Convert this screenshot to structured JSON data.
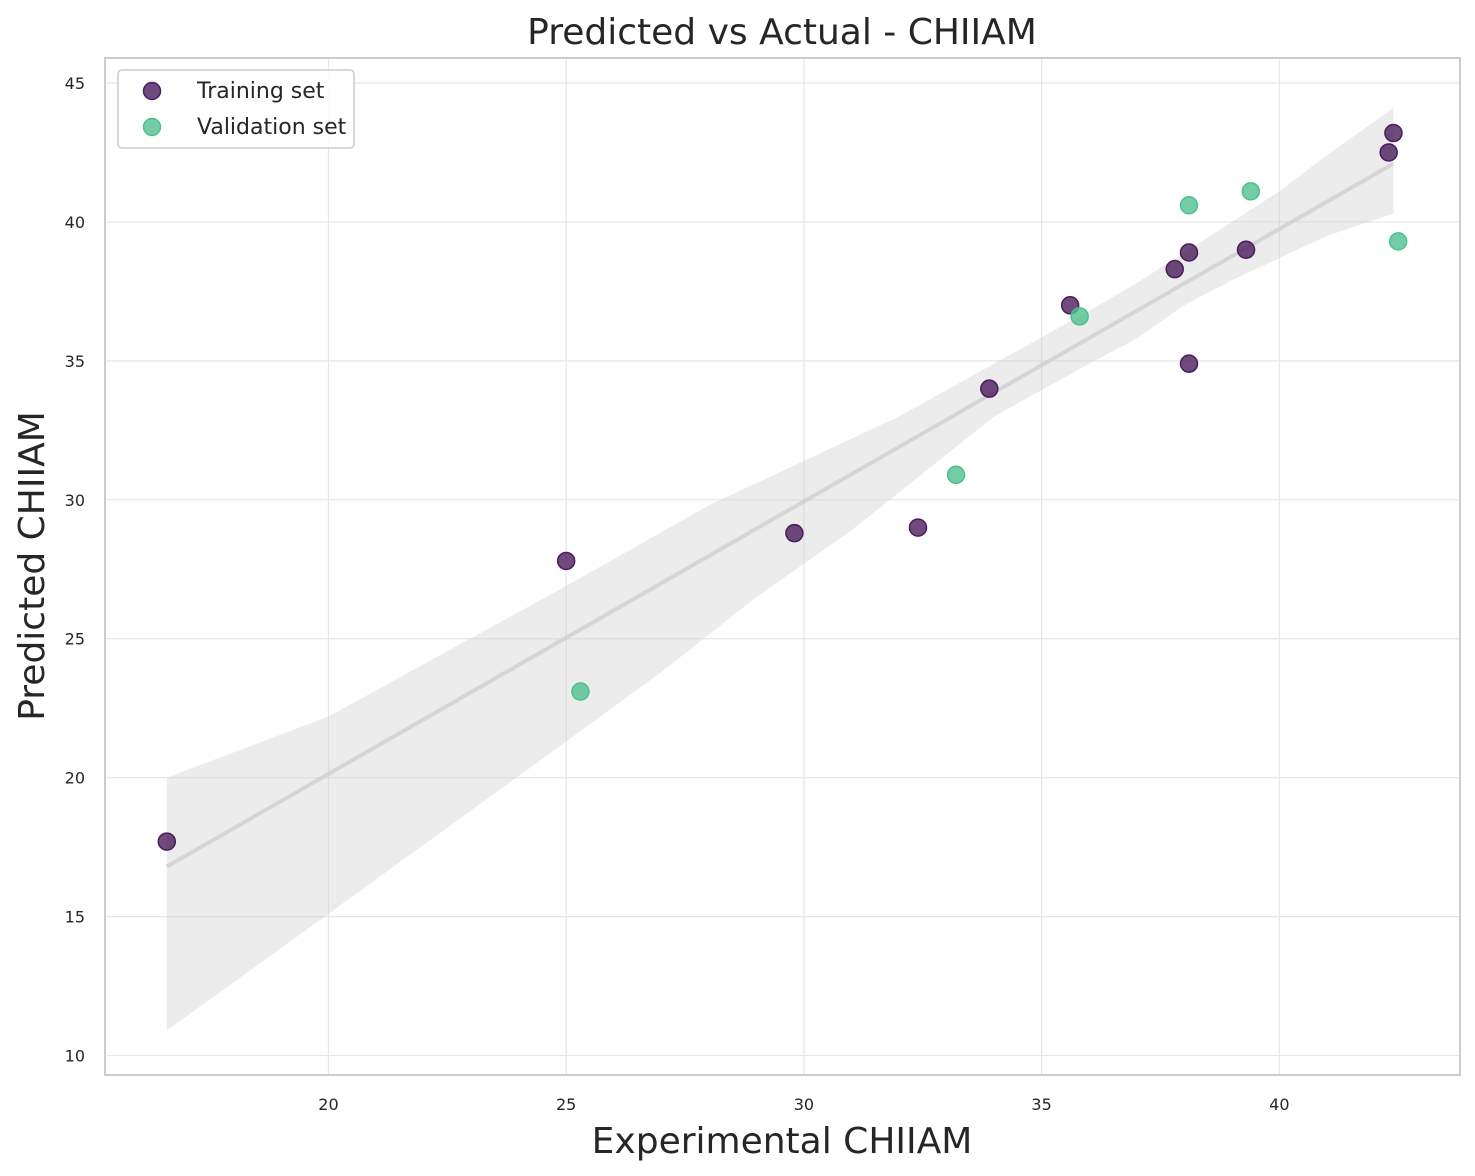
{
  "chart_data": {
    "type": "scatter",
    "title": "Predicted vs Actual - CHIIAM",
    "xlabel": "Experimental CHIIAM",
    "ylabel": "Predicted CHIIAM",
    "xlim": [
      15.3,
      43.8
    ],
    "ylim": [
      9.3,
      45.9
    ],
    "xticks": [
      20,
      25,
      30,
      35,
      40
    ],
    "yticks": [
      10,
      15,
      20,
      25,
      30,
      35,
      40,
      45
    ],
    "grid": true,
    "legend": "top-left",
    "series": [
      {
        "name": "Training set",
        "color": "#4b1d5c",
        "points": [
          {
            "x": 16.6,
            "y": 17.7
          },
          {
            "x": 25.0,
            "y": 27.8
          },
          {
            "x": 29.8,
            "y": 28.8
          },
          {
            "x": 32.4,
            "y": 29.0
          },
          {
            "x": 33.9,
            "y": 34.0
          },
          {
            "x": 35.6,
            "y": 37.0
          },
          {
            "x": 37.8,
            "y": 38.3
          },
          {
            "x": 38.1,
            "y": 34.9
          },
          {
            "x": 38.1,
            "y": 38.9
          },
          {
            "x": 39.3,
            "y": 39.0
          },
          {
            "x": 42.3,
            "y": 42.5
          },
          {
            "x": 42.4,
            "y": 43.2
          }
        ]
      },
      {
        "name": "Validation set",
        "color": "#4fc08d",
        "points": [
          {
            "x": 25.3,
            "y": 23.1
          },
          {
            "x": 33.2,
            "y": 30.9
          },
          {
            "x": 35.8,
            "y": 36.6
          },
          {
            "x": 38.1,
            "y": 40.6
          },
          {
            "x": 39.4,
            "y": 41.1
          },
          {
            "x": 42.5,
            "y": 39.3
          }
        ]
      }
    ],
    "regression": {
      "line": [
        [
          16.6,
          16.8
        ],
        [
          42.4,
          42.1
        ]
      ],
      "ci_upper": [
        [
          16.6,
          20.0
        ],
        [
          20.0,
          22.2
        ],
        [
          25.0,
          26.9
        ],
        [
          28.0,
          29.8
        ],
        [
          30.0,
          31.4
        ],
        [
          32.0,
          33.0
        ],
        [
          34.0,
          34.9
        ],
        [
          36.0,
          36.8
        ],
        [
          37.0,
          37.8
        ],
        [
          38.0,
          38.9
        ],
        [
          39.0,
          40.0
        ],
        [
          40.0,
          41.1
        ],
        [
          41.0,
          42.4
        ],
        [
          42.4,
          44.1
        ]
      ],
      "ci_lower": [
        [
          16.6,
          10.9
        ],
        [
          20.0,
          15.1
        ],
        [
          25.0,
          21.3
        ],
        [
          27.0,
          23.8
        ],
        [
          29.0,
          26.5
        ],
        [
          31.0,
          28.9
        ],
        [
          34.0,
          33.0
        ],
        [
          36.0,
          34.9
        ],
        [
          37.0,
          35.8
        ],
        [
          38.0,
          37.0
        ],
        [
          39.0,
          37.9
        ],
        [
          40.0,
          38.7
        ],
        [
          41.0,
          39.5
        ],
        [
          42.4,
          40.3
        ]
      ],
      "color": "#cccccc"
    }
  }
}
